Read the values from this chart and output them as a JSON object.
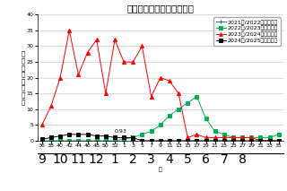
{
  "title": "インフルエンザ（埼玉県）",
  "ylabel": "定\n点\n当\nた\nり\n報\n告\n数",
  "xlabel": "月",
  "ylim": [
    0,
    40
  ],
  "yticks": [
    0,
    5,
    10,
    15,
    20,
    25,
    30,
    35,
    40
  ],
  "week_labels": [
    "36",
    "38",
    "40",
    "42",
    "44",
    "46",
    "48",
    "50",
    "52",
    "1",
    "3",
    "5",
    "7",
    "9",
    "11",
    "13",
    "15",
    "17",
    "19",
    "21",
    "23",
    "25",
    "27",
    "29",
    "31",
    "33",
    "35"
  ],
  "month_labels": [
    "9",
    "10",
    "11",
    "12",
    "1",
    "2",
    "3",
    "4",
    "5",
    "6",
    "7",
    "8"
  ],
  "month_positions": [
    0,
    2,
    4,
    6,
    8,
    10,
    12,
    14,
    16,
    18,
    20,
    22
  ],
  "annotation_text": "0.93",
  "annotation_xi": 10,
  "annotation_yi": 0.93,
  "annotation_xt": 8,
  "annotation_yt": 2.5,
  "series": [
    {
      "label": "2021年/2022年シーズン",
      "color": "#0070C0",
      "marker": "+",
      "markersize": 3,
      "values": [
        0,
        0,
        0,
        0,
        0,
        0,
        0,
        0,
        0,
        0,
        0,
        0,
        0,
        0,
        0,
        0,
        0,
        0,
        0,
        0,
        0,
        0,
        0,
        0,
        0,
        0,
        0
      ]
    },
    {
      "label": "2022年/2023年シーズン",
      "color": "#00B050",
      "marker": "s",
      "markersize": 2.5,
      "values": [
        0,
        0,
        0,
        0,
        0,
        0,
        0,
        0,
        0,
        0.5,
        1,
        2,
        3,
        5,
        8,
        10,
        12,
        14,
        7,
        3,
        2,
        1,
        1,
        1,
        1,
        1,
        2
      ]
    },
    {
      "label": "2023年/2024年シーズン",
      "color": "#FF0000",
      "marker": "^",
      "markersize": 3,
      "values": [
        5,
        11,
        20,
        35,
        21,
        28,
        32,
        15,
        32,
        25,
        25,
        30,
        14,
        20,
        19,
        15,
        1,
        2,
        1,
        1,
        1,
        1,
        1,
        1,
        0,
        0,
        0
      ]
    },
    {
      "label": "2024年/2025年シーズン",
      "color": "#000000",
      "marker": "s",
      "markersize": 2.5,
      "values": [
        0.5,
        1,
        1.5,
        2,
        2,
        2,
        1.5,
        1.5,
        1,
        1,
        0.93,
        0,
        0,
        0,
        0,
        0,
        0,
        0,
        0,
        0,
        0,
        0,
        0,
        0,
        0,
        0,
        0
      ]
    }
  ],
  "background_color": "#FFFFFF",
  "grid_color": "#CCCCCC",
  "legend_fontsize": 4.5,
  "title_fontsize": 7.5,
  "tick_fontsize": 4.5,
  "ylabel_fontsize": 5
}
